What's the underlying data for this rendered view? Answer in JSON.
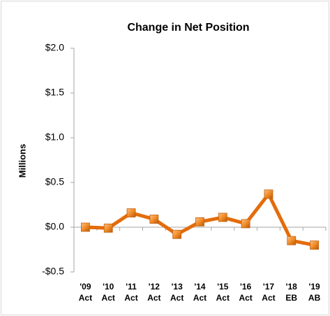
{
  "chart_data": {
    "type": "line",
    "title": "Change in Net Position",
    "y_label": "Millions",
    "categories": [
      "'09 Act",
      "'10 Act",
      "'11 Act",
      "'12 Act",
      "'13 Act",
      "'14 Act",
      "'15 Act",
      "'16 Act",
      "'17 Act",
      "'18 EB",
      "'19 AB"
    ],
    "series": [
      {
        "name": "Change in Net Position",
        "color": "#e46c0a",
        "values": [
          0.0,
          -0.01,
          0.16,
          0.09,
          -0.08,
          0.06,
          0.11,
          0.04,
          0.37,
          -0.15,
          -0.2
        ]
      }
    ],
    "ylim": [
      -0.5,
      2.0
    ],
    "yticks": [
      {
        "value": -0.5,
        "label": "-$0.5"
      },
      {
        "value": 0,
        "label": "$0.0"
      },
      {
        "value": 0.5,
        "label": "$0.5"
      },
      {
        "value": 1.0,
        "label": "$1.0"
      },
      {
        "value": 1.5,
        "label": "$1.5"
      },
      {
        "value": 2.0,
        "label": "$2.0"
      }
    ],
    "grid": false
  }
}
